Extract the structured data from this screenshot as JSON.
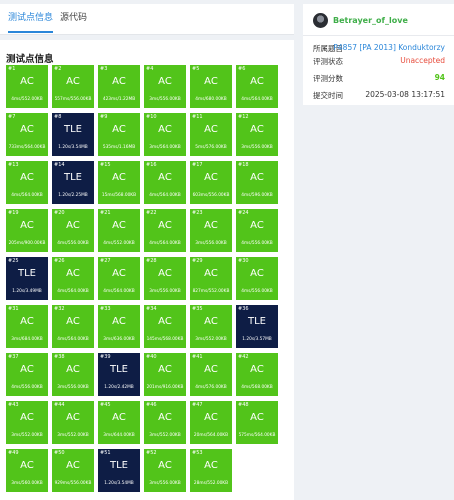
{
  "tabs": [
    {
      "label": "测试点信息"
    },
    {
      "label": "源代码"
    }
  ],
  "panel": {
    "title": "测试点信息"
  },
  "testcases": [
    {
      "n": "#1",
      "s": "AC",
      "t": "4ms/552.00KB"
    },
    {
      "n": "#2",
      "s": "AC",
      "t": "557ms/556.00KB"
    },
    {
      "n": "#3",
      "s": "AC",
      "t": "423ms/1.22MB"
    },
    {
      "n": "#4",
      "s": "AC",
      "t": "3ms/556.00KB"
    },
    {
      "n": "#5",
      "s": "AC",
      "t": "4ms/680.00KB"
    },
    {
      "n": "#6",
      "s": "AC",
      "t": "4ms/564.00KB"
    },
    {
      "n": "#7",
      "s": "AC",
      "t": "733ms/564.00KB"
    },
    {
      "n": "#8",
      "s": "TLE",
      "t": "1.20s/3.54MB"
    },
    {
      "n": "#9",
      "s": "AC",
      "t": "535ms/1.16MB"
    },
    {
      "n": "#10",
      "s": "AC",
      "t": "3ms/564.00KB"
    },
    {
      "n": "#11",
      "s": "AC",
      "t": "5ms/576.00KB"
    },
    {
      "n": "#12",
      "s": "AC",
      "t": "3ms/556.00KB"
    },
    {
      "n": "#13",
      "s": "AC",
      "t": "4ms/564.00KB"
    },
    {
      "n": "#14",
      "s": "TLE",
      "t": "1.20s/2.25MB"
    },
    {
      "n": "#15",
      "s": "AC",
      "t": "15ms/568.00KB"
    },
    {
      "n": "#16",
      "s": "AC",
      "t": "4ms/564.00KB"
    },
    {
      "n": "#17",
      "s": "AC",
      "t": "603ms/556.00KB"
    },
    {
      "n": "#18",
      "s": "AC",
      "t": "4ms/596.00KB"
    },
    {
      "n": "#19",
      "s": "AC",
      "t": "205ms/900.00KB"
    },
    {
      "n": "#20",
      "s": "AC",
      "t": "4ms/556.00KB"
    },
    {
      "n": "#21",
      "s": "AC",
      "t": "4ms/552.00KB"
    },
    {
      "n": "#22",
      "s": "AC",
      "t": "4ms/564.00KB"
    },
    {
      "n": "#23",
      "s": "AC",
      "t": "3ms/556.00KB"
    },
    {
      "n": "#24",
      "s": "AC",
      "t": "4ms/556.00KB"
    },
    {
      "n": "#25",
      "s": "TLE",
      "t": "1.20s/3.49MB"
    },
    {
      "n": "#26",
      "s": "AC",
      "t": "4ms/564.00KB"
    },
    {
      "n": "#27",
      "s": "AC",
      "t": "4ms/564.00KB"
    },
    {
      "n": "#28",
      "s": "AC",
      "t": "3ms/556.00KB"
    },
    {
      "n": "#29",
      "s": "AC",
      "t": "827ms/552.00KB"
    },
    {
      "n": "#30",
      "s": "AC",
      "t": "4ms/556.00KB"
    },
    {
      "n": "#31",
      "s": "AC",
      "t": "3ms/684.00KB"
    },
    {
      "n": "#32",
      "s": "AC",
      "t": "4ms/564.00KB"
    },
    {
      "n": "#33",
      "s": "AC",
      "t": "3ms/636.00KB"
    },
    {
      "n": "#34",
      "s": "AC",
      "t": "145ms/568.00KB"
    },
    {
      "n": "#35",
      "s": "AC",
      "t": "3ms/552.00KB"
    },
    {
      "n": "#36",
      "s": "TLE",
      "t": "1.20s/3.57MB"
    },
    {
      "n": "#37",
      "s": "AC",
      "t": "4ms/556.00KB"
    },
    {
      "n": "#38",
      "s": "AC",
      "t": "3ms/556.00KB"
    },
    {
      "n": "#39",
      "s": "TLE",
      "t": "1.20s/2.42MB"
    },
    {
      "n": "#40",
      "s": "AC",
      "t": "201ms/916.00KB"
    },
    {
      "n": "#41",
      "s": "AC",
      "t": "4ms/576.00KB"
    },
    {
      "n": "#42",
      "s": "AC",
      "t": "4ms/568.00KB"
    },
    {
      "n": "#43",
      "s": "AC",
      "t": "3ms/552.00KB"
    },
    {
      "n": "#44",
      "s": "AC",
      "t": "3ms/552.00KB"
    },
    {
      "n": "#45",
      "s": "AC",
      "t": "3ms/644.00KB"
    },
    {
      "n": "#46",
      "s": "AC",
      "t": "3ms/552.00KB"
    },
    {
      "n": "#47",
      "s": "AC",
      "t": "20ms/564.00KB"
    },
    {
      "n": "#48",
      "s": "AC",
      "t": "575ms/564.00KB"
    },
    {
      "n": "#49",
      "s": "AC",
      "t": "3ms/560.00KB"
    },
    {
      "n": "#50",
      "s": "AC",
      "t": "929ms/556.00KB"
    },
    {
      "n": "#51",
      "s": "TLE",
      "t": "1.20s/3.54MB"
    },
    {
      "n": "#52",
      "s": "AC",
      "t": "3ms/556.00KB"
    },
    {
      "n": "#53",
      "s": "AC",
      "t": "28ms/552.00KB"
    }
  ],
  "colors": {
    "ac": "#52c41a",
    "tle": "#0e1d45",
    "link": "#2a86d9",
    "unaccepted": "#e74c3c"
  },
  "sidebar": {
    "username": "Betrayer_of_love",
    "rows": [
      {
        "key": "所属题目",
        "value": "P4857 [PA 2013] Konduktorzy"
      },
      {
        "key": "评测状态",
        "value": "Unaccepted"
      },
      {
        "key": "评测分数",
        "value": "94"
      },
      {
        "key": "提交时间",
        "value": "2025-03-08 13:17:51"
      }
    ]
  }
}
